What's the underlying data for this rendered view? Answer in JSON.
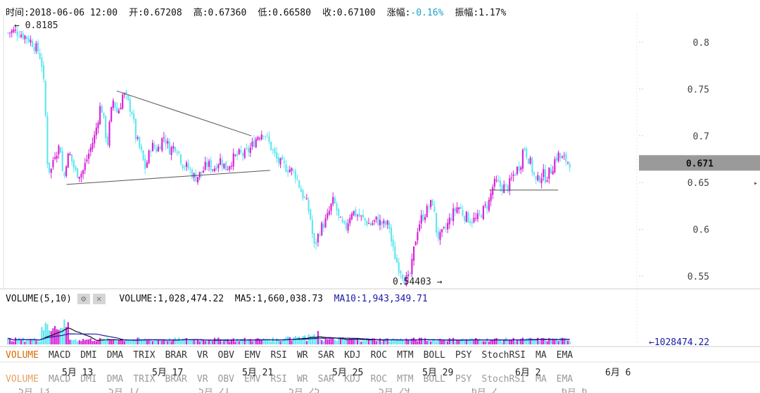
{
  "header": {
    "time_label": "时间:2018-06-06 12:00",
    "open_label": "开:0.67208",
    "high_label": "高:0.67360",
    "low_label": "低:0.66580",
    "close_label": "收:0.67100",
    "change_prefix": "涨幅:",
    "change_value": "-0.16%",
    "amplitude_label": "振幅:1.17%"
  },
  "price_chart": {
    "y_ticks": [
      "0.8",
      "0.75",
      "0.7",
      "0.65",
      "0.6",
      "0.55"
    ],
    "current_price": "0.671",
    "high_annotation": "← 0.8185",
    "low_annotation": "0.54403 →"
  },
  "volume_bar": {
    "title": "VOLUME(5,10)",
    "gear_icon": "⚙",
    "close_icon": "✕",
    "volume": "VOLUME:1,028,474.22",
    "ma5": "MA5:1,660,038.73",
    "ma10": "MA10:1,943,349.71",
    "last_value_label": "←1028474.22"
  },
  "indicator_tabs": [
    "VOLUME",
    "MACD",
    "DMI",
    "DMA",
    "TRIX",
    "BRAR",
    "VR",
    "OBV",
    "EMV",
    "RSI",
    "WR",
    "SAR",
    "KDJ",
    "ROC",
    "MTM",
    "BOLL",
    "PSY",
    "StochRSI",
    "MA",
    "EMA"
  ],
  "x_dates": [
    "5月 13",
    "5月 17",
    "5月 21",
    "5月 25",
    "5月 29",
    "6月 2",
    "6月 6"
  ],
  "colors": {
    "up": "#d81fd8",
    "down": "#5ee6f0",
    "ma5": "#111111",
    "ma10": "#1a1aa8",
    "price_box": "#9a9a9a",
    "accent_negative": "#1aa1c8"
  },
  "chart_data": {
    "type": "candlestick",
    "title": "",
    "x_range": [
      "2018-05-10",
      "2018-06-06 12:00"
    ],
    "ylim": [
      0.54,
      0.82
    ],
    "close_path": [
      [
        0.0,
        0.81
      ],
      [
        0.01,
        0.812
      ],
      [
        0.02,
        0.81
      ],
      [
        0.03,
        0.806
      ],
      [
        0.04,
        0.8
      ],
      [
        0.05,
        0.79
      ],
      [
        0.055,
        0.78
      ],
      [
        0.06,
        0.745
      ],
      [
        0.065,
        0.665
      ],
      [
        0.07,
        0.662
      ],
      [
        0.075,
        0.68
      ],
      [
        0.085,
        0.69
      ],
      [
        0.09,
        0.65
      ],
      [
        0.095,
        0.675
      ],
      [
        0.1,
        0.68
      ],
      [
        0.11,
        0.66
      ],
      [
        0.12,
        0.66
      ],
      [
        0.13,
        0.68
      ],
      [
        0.14,
        0.7
      ],
      [
        0.15,
        0.735
      ],
      [
        0.16,
        0.69
      ],
      [
        0.165,
        0.72
      ],
      [
        0.17,
        0.74
      ],
      [
        0.175,
        0.725
      ],
      [
        0.18,
        0.73
      ],
      [
        0.185,
        0.745
      ],
      [
        0.19,
        0.74
      ],
      [
        0.2,
        0.725
      ],
      [
        0.205,
        0.7
      ],
      [
        0.21,
        0.69
      ],
      [
        0.215,
        0.68
      ],
      [
        0.22,
        0.665
      ],
      [
        0.225,
        0.675
      ],
      [
        0.23,
        0.69
      ],
      [
        0.24,
        0.685
      ],
      [
        0.25,
        0.7
      ],
      [
        0.26,
        0.685
      ],
      [
        0.27,
        0.69
      ],
      [
        0.28,
        0.67
      ],
      [
        0.29,
        0.665
      ],
      [
        0.3,
        0.655
      ],
      [
        0.31,
        0.66
      ],
      [
        0.32,
        0.67
      ],
      [
        0.33,
        0.665
      ],
      [
        0.34,
        0.675
      ],
      [
        0.35,
        0.665
      ],
      [
        0.36,
        0.675
      ],
      [
        0.37,
        0.68
      ],
      [
        0.38,
        0.68
      ],
      [
        0.39,
        0.688
      ],
      [
        0.4,
        0.7
      ],
      [
        0.41,
        0.705
      ],
      [
        0.42,
        0.69
      ],
      [
        0.43,
        0.675
      ],
      [
        0.44,
        0.668
      ],
      [
        0.45,
        0.665
      ],
      [
        0.46,
        0.66
      ],
      [
        0.47,
        0.64
      ],
      [
        0.48,
        0.625
      ],
      [
        0.485,
        0.61
      ],
      [
        0.49,
        0.58
      ],
      [
        0.5,
        0.6
      ],
      [
        0.51,
        0.61
      ],
      [
        0.52,
        0.63
      ],
      [
        0.525,
        0.625
      ],
      [
        0.53,
        0.61
      ],
      [
        0.54,
        0.6
      ],
      [
        0.55,
        0.62
      ],
      [
        0.56,
        0.615
      ],
      [
        0.57,
        0.61
      ],
      [
        0.58,
        0.605
      ],
      [
        0.59,
        0.61
      ],
      [
        0.6,
        0.605
      ],
      [
        0.61,
        0.605
      ],
      [
        0.615,
        0.58
      ],
      [
        0.62,
        0.57
      ],
      [
        0.625,
        0.56
      ],
      [
        0.63,
        0.555
      ],
      [
        0.635,
        0.547
      ],
      [
        0.64,
        0.545
      ],
      [
        0.645,
        0.555
      ],
      [
        0.65,
        0.58
      ],
      [
        0.655,
        0.6
      ],
      [
        0.66,
        0.61
      ],
      [
        0.67,
        0.62
      ],
      [
        0.68,
        0.63
      ],
      [
        0.685,
        0.6
      ],
      [
        0.69,
        0.59
      ],
      [
        0.7,
        0.6
      ],
      [
        0.71,
        0.615
      ],
      [
        0.72,
        0.625
      ],
      [
        0.73,
        0.615
      ],
      [
        0.74,
        0.61
      ],
      [
        0.75,
        0.61
      ],
      [
        0.76,
        0.62
      ],
      [
        0.77,
        0.63
      ],
      [
        0.775,
        0.645
      ],
      [
        0.78,
        0.65
      ],
      [
        0.79,
        0.645
      ],
      [
        0.8,
        0.645
      ],
      [
        0.81,
        0.66
      ],
      [
        0.815,
        0.665
      ],
      [
        0.82,
        0.67
      ],
      [
        0.825,
        0.69
      ],
      [
        0.83,
        0.68
      ],
      [
        0.835,
        0.672
      ],
      [
        0.84,
        0.66
      ],
      [
        0.845,
        0.65
      ],
      [
        0.85,
        0.655
      ],
      [
        0.855,
        0.66
      ],
      [
        0.86,
        0.655
      ],
      [
        0.865,
        0.66
      ],
      [
        0.87,
        0.665
      ],
      [
        0.875,
        0.675
      ],
      [
        0.88,
        0.68
      ],
      [
        0.885,
        0.675
      ],
      [
        0.89,
        0.675
      ],
      [
        0.9,
        0.671
      ]
    ],
    "annotations": {
      "high": 0.8185,
      "low": 0.54403,
      "last": 0.671
    },
    "trendlines": [
      {
        "from": [
          0.175,
          0.748
        ],
        "to": [
          0.39,
          0.7
        ]
      },
      {
        "from": [
          0.095,
          0.648
        ],
        "to": [
          0.42,
          0.663
        ]
      },
      {
        "from": [
          0.77,
          0.642
        ],
        "to": [
          0.88,
          0.642
        ]
      }
    ],
    "volume": {
      "last": 1028474.22,
      "ma5": 1660038.73,
      "ma10": 1943349.71
    }
  }
}
